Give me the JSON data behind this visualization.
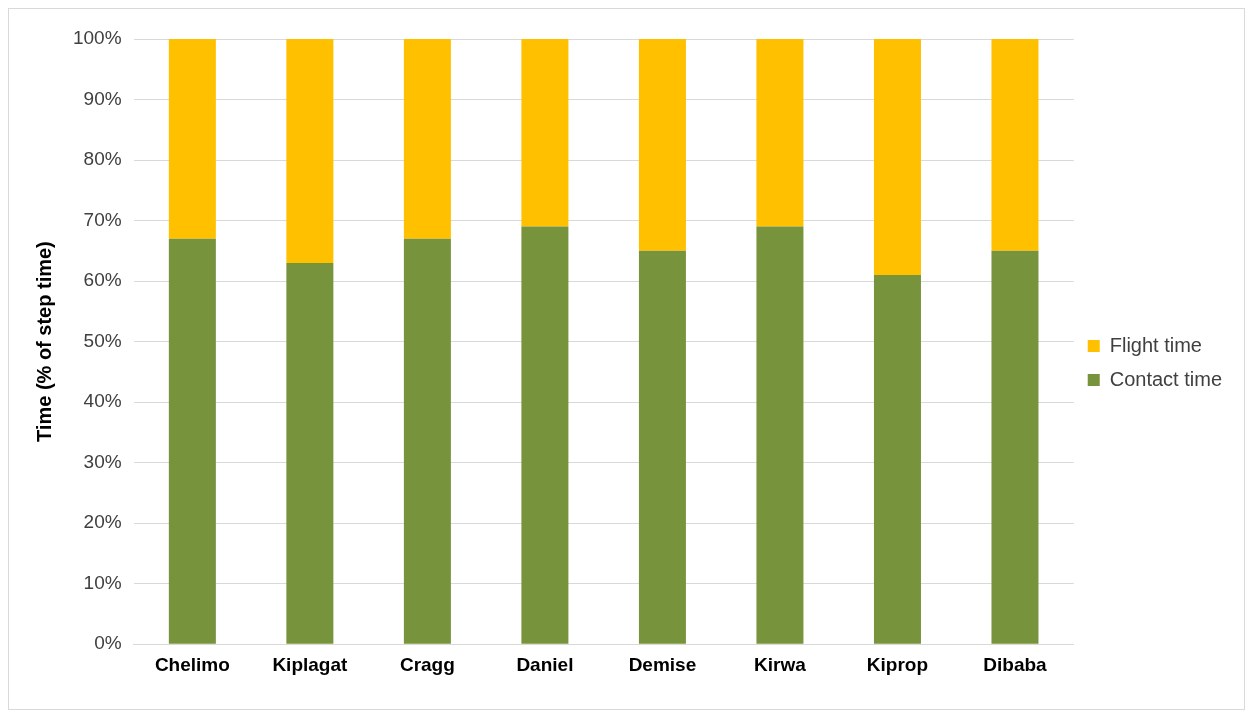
{
  "chart_data": {
    "type": "bar",
    "stacked": true,
    "ylabel": "Time (% of step time)",
    "categories": [
      "Chelimo",
      "Kiplagat",
      "Cragg",
      "Daniel",
      "Demise",
      "Kirwa",
      "Kiprop",
      "Dibaba"
    ],
    "series": [
      {
        "name": "Contact time",
        "color": "#77933c",
        "values": [
          67,
          63,
          67,
          69,
          65,
          69,
          61,
          65
        ]
      },
      {
        "name": "Flight time",
        "color": "#ffc000",
        "values": [
          33,
          37,
          33,
          31,
          35,
          31,
          39,
          35
        ]
      }
    ],
    "ylim": [
      0,
      100
    ],
    "yticks": [
      {
        "value": 0,
        "label": "0%"
      },
      {
        "value": 10,
        "label": "10%"
      },
      {
        "value": 20,
        "label": "20%"
      },
      {
        "value": 30,
        "label": "30%"
      },
      {
        "value": 40,
        "label": "40%"
      },
      {
        "value": 50,
        "label": "50%"
      },
      {
        "value": 60,
        "label": "60%"
      },
      {
        "value": 70,
        "label": "70%"
      },
      {
        "value": 80,
        "label": "80%"
      },
      {
        "value": 90,
        "label": "90%"
      },
      {
        "value": 100,
        "label": "100%"
      }
    ],
    "grid": "y",
    "legend": "right"
  }
}
